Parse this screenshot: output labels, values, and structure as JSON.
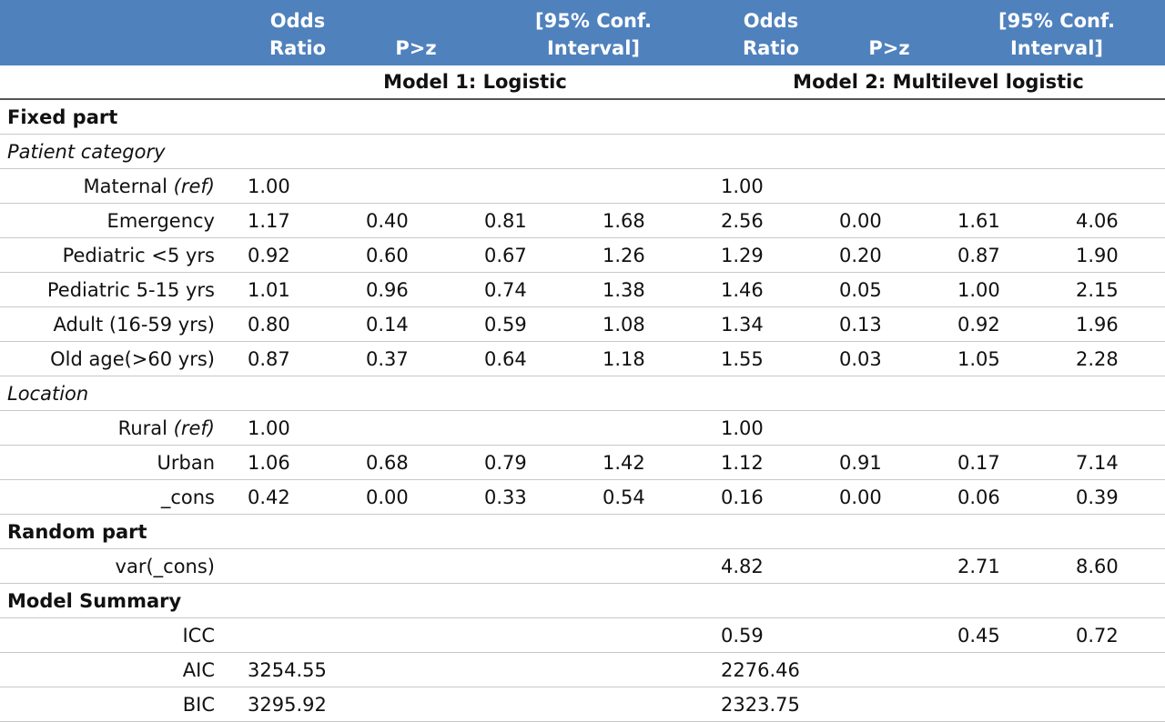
{
  "header": {
    "columns": [
      "Odds Ratio",
      "P>z",
      "[95% Conf. Interval]",
      "Odds Ratio",
      "P>z",
      "[95% Conf. Interval]"
    ],
    "models": [
      "Model 1: Logistic",
      "Model 2: Multilevel logistic"
    ]
  },
  "table": {
    "rows": [
      {
        "section": "Fixed part",
        "style": "bold"
      },
      {
        "section": "Patient category",
        "style": "italic"
      },
      {
        "label": "Maternal",
        "note": "(ref)",
        "cells": [
          "1.00",
          null,
          null,
          null,
          "1.00",
          null,
          null,
          null
        ]
      },
      {
        "label": "Emergency",
        "cells": [
          "1.17",
          "0.40",
          "0.81",
          "1.68",
          "2.56",
          "0.00",
          "1.61",
          "4.06"
        ]
      },
      {
        "label": "Pediatric <5 yrs",
        "cells": [
          "0.92",
          "0.60",
          "0.67",
          "1.26",
          "1.29",
          "0.20",
          "0.87",
          "1.90"
        ]
      },
      {
        "label": "Pediatric 5-15 yrs",
        "cells": [
          "1.01",
          "0.96",
          "0.74",
          "1.38",
          "1.46",
          "0.05",
          "1.00",
          "2.15"
        ]
      },
      {
        "label": "Adult (16-59 yrs)",
        "cells": [
          "0.80",
          "0.14",
          "0.59",
          "1.08",
          "1.34",
          "0.13",
          "0.92",
          "1.96"
        ]
      },
      {
        "label": "Old age(>60 yrs)",
        "cells": [
          "0.87",
          "0.37",
          "0.64",
          "1.18",
          "1.55",
          "0.03",
          "1.05",
          "2.28"
        ]
      },
      {
        "section": "Location",
        "style": "italic"
      },
      {
        "label": "Rural",
        "note": "(ref)",
        "cells": [
          "1.00",
          null,
          null,
          null,
          "1.00",
          null,
          null,
          null
        ]
      },
      {
        "label": "Urban",
        "cells": [
          "1.06",
          "0.68",
          "0.79",
          "1.42",
          "1.12",
          "0.91",
          "0.17",
          "7.14"
        ]
      },
      {
        "label": "_cons",
        "cells": [
          "0.42",
          "0.00",
          "0.33",
          "0.54",
          "0.16",
          "0.00",
          "0.06",
          "0.39"
        ]
      },
      {
        "section": "Random part",
        "style": "bold"
      },
      {
        "label": "var(_cons)",
        "cells": [
          null,
          null,
          null,
          null,
          "4.82",
          null,
          "2.71",
          "8.60"
        ]
      },
      {
        "section": "Model Summary",
        "style": "bold"
      },
      {
        "label": "ICC",
        "cells": [
          null,
          null,
          null,
          null,
          "0.59",
          null,
          "0.45",
          "0.72"
        ]
      },
      {
        "label": "AIC",
        "cells": [
          "3254.55",
          null,
          null,
          null,
          "2276.46",
          null,
          null,
          null
        ]
      },
      {
        "label": "BIC",
        "cells": [
          "3295.92",
          null,
          null,
          null,
          "2323.75",
          null,
          null,
          null
        ]
      }
    ]
  }
}
